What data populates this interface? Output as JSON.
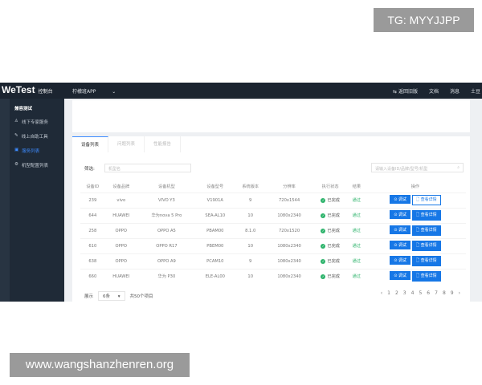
{
  "watermarks": {
    "top": "TG: MYYJJPP",
    "bottom": "www.wangshanzhenren.org"
  },
  "header": {
    "logo": "WeTest",
    "console": "控制台",
    "app": "柠檬班APP",
    "right": [
      "返回旧版",
      "文档",
      "消息",
      "土豆"
    ]
  },
  "sidebar": {
    "heading": "兼容测试",
    "items": [
      {
        "icon": "user-icon",
        "label": "线下专家服务"
      },
      {
        "icon": "edit-icon",
        "label": "线上自助工具"
      },
      {
        "icon": "list-icon",
        "label": "服务列表",
        "active": true
      },
      {
        "icon": "gear-icon",
        "label": "机型配置列表"
      }
    ]
  },
  "tabs": [
    "设备列表",
    "问题列表",
    "性能报告"
  ],
  "filter": {
    "label": "筛选:",
    "placeholder": "机型名"
  },
  "search": {
    "placeholder": "请输入设备ID/品牌/型号/机型"
  },
  "table": {
    "headers": [
      "设备ID",
      "设备品牌",
      "设备机型",
      "设备型号",
      "系统版本",
      "分辨率",
      "执行状态",
      "结果",
      "操作"
    ],
    "rows": [
      [
        "239",
        "vivo",
        "VIVO Y3",
        "V1901A",
        "9",
        "720x1544",
        "已完成",
        "通过"
      ],
      [
        "644",
        "HUAWEI",
        "华为nova 5 Pro",
        "SEA-AL10",
        "10",
        "1080x2340",
        "已完成",
        "通过"
      ],
      [
        "258",
        "OPPO",
        "OPPO A5",
        "PBAM00",
        "8.1.0",
        "720x1520",
        "已完成",
        "通过"
      ],
      [
        "610",
        "OPPO",
        "OPPO R17",
        "PBEM00",
        "10",
        "1080x2340",
        "已完成",
        "通过"
      ],
      [
        "638",
        "OPPO",
        "OPPO A9",
        "PCAM10",
        "9",
        "1080x2340",
        "已完成",
        "通过"
      ],
      [
        "660",
        "HUAWEI",
        "华为 P30",
        "ELE-AL00",
        "10",
        "1080x2340",
        "已完成",
        "通过"
      ]
    ],
    "actions": {
      "debug": "调试",
      "detail": "查看详情"
    }
  },
  "footer": {
    "show": "展示",
    "page_size": "6条",
    "total": "共50个项目"
  },
  "pagination": {
    "prev": "‹",
    "pages": [
      "1",
      "2",
      "3",
      "4",
      "5",
      "6",
      "7",
      "8",
      "9"
    ],
    "next": "›"
  }
}
